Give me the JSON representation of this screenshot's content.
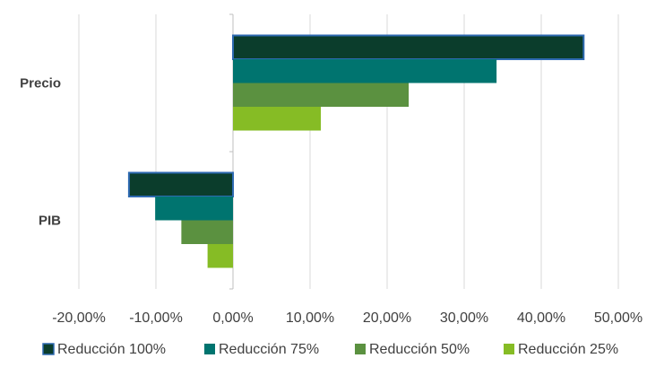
{
  "chart_data": {
    "type": "bar",
    "orientation": "horizontal",
    "categories": [
      "Precio",
      "PIB"
    ],
    "series": [
      {
        "name": "Reducción 100%",
        "color": "#0b3d2c",
        "values": [
          45.5,
          -13.5
        ]
      },
      {
        "name": "Reducción 75%",
        "color": "#00746f",
        "values": [
          34.2,
          -10.1
        ]
      },
      {
        "name": "Reducción 50%",
        "color": "#5b9140",
        "values": [
          22.8,
          -6.7
        ]
      },
      {
        "name": "Reducción 25%",
        "color": "#86bc25",
        "values": [
          11.4,
          -3.3
        ]
      }
    ],
    "xlim": [
      -20,
      50
    ],
    "xticks": [
      -20,
      -10,
      0,
      10,
      20,
      30,
      40,
      50
    ],
    "xtick_labels": [
      "-20,00%",
      "-10,00%",
      "0,00%",
      "10,00%",
      "20,00%",
      "30,00%",
      "40,00%",
      "50,00%"
    ],
    "grid": true,
    "legend_position": "bottom",
    "first_series_outline_color": "#2e6ab2"
  }
}
